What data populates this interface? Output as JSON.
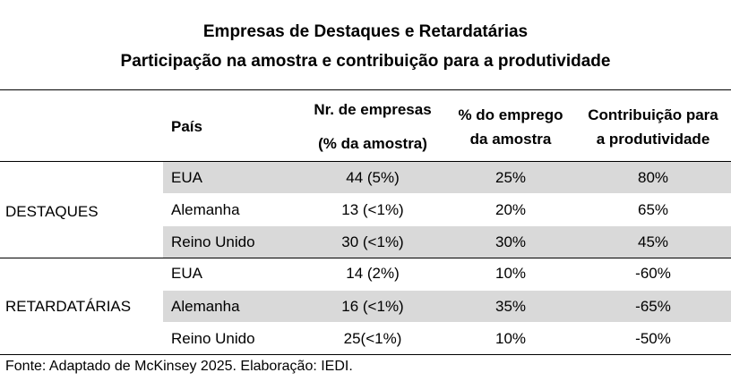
{
  "title": "Empresas de Destaques e Retardatárias",
  "subtitle": "Participação na amostra e contribuição para a produtividade",
  "headers": {
    "pais": "País",
    "n_line1": "Nr. de empresas",
    "n_line2": "(% da amostra)",
    "emp_line1": "% do emprego",
    "emp_line2": "da amostra",
    "con_line1": "Contribuição para",
    "con_line2": "a produtividade"
  },
  "groups": [
    {
      "label": "DESTAQUES",
      "rows": [
        {
          "pais": "EUA",
          "empresas": "44 (5%)",
          "emprego": "25%",
          "contribuicao": "80%"
        },
        {
          "pais": "Alemanha",
          "empresas": "13 (<1%)",
          "emprego": "20%",
          "contribuicao": "65%"
        },
        {
          "pais": "Reino Unido",
          "empresas": "30 (<1%)",
          "emprego": "30%",
          "contribuicao": "45%"
        }
      ]
    },
    {
      "label": "RETARDATÁRIAS",
      "rows": [
        {
          "pais": "EUA",
          "empresas": "14 (2%)",
          "emprego": "10%",
          "contribuicao": "-60%"
        },
        {
          "pais": "Alemanha",
          "empresas": "16 (<1%)",
          "emprego": "35%",
          "contribuicao": "-65%"
        },
        {
          "pais": "Reino Unido",
          "empresas": "25(<1%)",
          "emprego": "10%",
          "contribuicao": "-50%"
        }
      ]
    }
  ],
  "source": "Fonte: Adaptado de McKinsey 2025. Elaboração: IEDI."
}
